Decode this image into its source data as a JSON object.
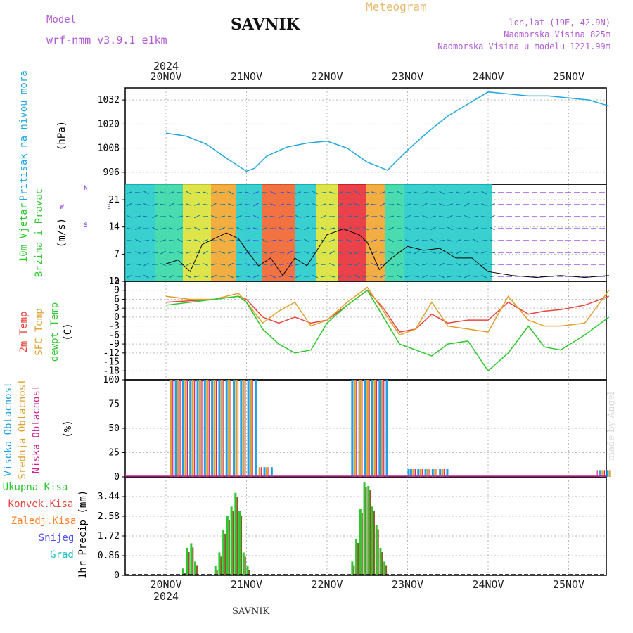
{
  "header": {
    "model_label": "Model",
    "model_name": "wrf-nmm_v3.9.1 e1km",
    "station": "SAVNIK",
    "product": "Meteogram",
    "coords": "lon,lat (19E, 42.9N)",
    "altitude": "Nadmorska Visina 825m",
    "model_altitude": "Nadmorska Visina u modelu 1221.99m",
    "year": "2024"
  },
  "footer": {
    "station": "SAVNIK",
    "year": "2024",
    "credit": "made by Angel"
  },
  "colors": {
    "pressure": "#22a7e0",
    "temp2m": "#e8453c",
    "sfc_temp": "#e0a030",
    "dewpoint": "#2ec82e",
    "cloud_high": "#1ea0e6",
    "cloud_mid": "#e0a030",
    "cloud_low": "#d01f8a",
    "rain_total": "#2ec82e",
    "rain_conv": "#e8453c",
    "snow": "#5050ff",
    "grad": "#22c0c0",
    "zaledj": "#ff7f27",
    "wind_purple": "#8a2be2"
  },
  "chart_data": [
    {
      "type": "line",
      "id": "pressure",
      "ylabel": "Pritisak na nivou mora",
      "unit": "(hPa)",
      "ylim": [
        990,
        1038
      ],
      "yticks": [
        996,
        1008,
        1020,
        1032
      ],
      "x_ticks": [
        "20NOV",
        "21NOV",
        "22NOV",
        "23NOV",
        "24NOV",
        "25NOV"
      ],
      "grid": true,
      "x": [
        0,
        0.25,
        0.5,
        0.75,
        1.0,
        1.1,
        1.25,
        1.5,
        1.75,
        2.0,
        2.25,
        2.5,
        2.75,
        3.0,
        3.25,
        3.5,
        3.75,
        4.0,
        4.25,
        4.5,
        4.75,
        5.0,
        5.25,
        5.5
      ],
      "values": [
        1015.5,
        1014,
        1010,
        1003,
        996.5,
        998,
        1004,
        1008.5,
        1010.5,
        1011.5,
        1008,
        1001,
        997,
        1007,
        1016,
        1024,
        1030,
        1036,
        1035,
        1034,
        1034,
        1033,
        1032,
        1029
      ]
    },
    {
      "type": "line",
      "id": "wind",
      "ylabel": "10m Vjetar Brzina i Pravac",
      "unit": "(m/s)",
      "ylim": [
        0,
        25
      ],
      "yticks": [
        0,
        7,
        14,
        21
      ],
      "compass": {
        "n": "N",
        "e": "E",
        "s": "S",
        "w": "W"
      },
      "grid": true,
      "x": [
        0,
        0.15,
        0.3,
        0.45,
        0.6,
        0.75,
        0.9,
        1.0,
        1.15,
        1.3,
        1.45,
        1.6,
        1.75,
        2.0,
        2.2,
        2.4,
        2.5,
        2.65,
        2.8,
        3.0,
        3.2,
        3.4,
        3.6,
        3.8,
        4.0,
        4.3,
        4.6,
        4.9,
        5.2,
        5.5
      ],
      "values": [
        4.5,
        5.5,
        2.5,
        9.5,
        11,
        12.5,
        11,
        8,
        4,
        6,
        1.5,
        6,
        4,
        12,
        13.5,
        12,
        10,
        3,
        6,
        9,
        8,
        8.5,
        6,
        6,
        2.5,
        1.5,
        1,
        1.5,
        1,
        1.5
      ]
    },
    {
      "type": "line",
      "id": "temperature",
      "ylabels": [
        "2m Temp",
        "SFC Temp",
        "dewpt Temp"
      ],
      "unit": "(C)",
      "ylim": [
        -21,
        12
      ],
      "yticks": [
        -18,
        -15,
        -12,
        -9,
        -6,
        -3,
        0,
        3,
        6,
        9,
        12
      ],
      "grid": true,
      "x": [
        0,
        0.3,
        0.6,
        0.9,
        1.0,
        1.2,
        1.4,
        1.6,
        1.8,
        2.0,
        2.25,
        2.5,
        2.7,
        2.9,
        3.1,
        3.3,
        3.5,
        3.75,
        4.0,
        4.25,
        4.5,
        4.7,
        4.9,
        5.2,
        5.5
      ],
      "series": [
        {
          "name": "2m Temp",
          "values": [
            5,
            5.5,
            6,
            7,
            6,
            0,
            -2,
            0,
            -2,
            -1,
            4,
            9,
            3,
            -5,
            -4,
            1,
            -2,
            -1,
            -1,
            5,
            1,
            2,
            2.5,
            4,
            7
          ]
        },
        {
          "name": "SFC Temp",
          "values": [
            7,
            6,
            6,
            8,
            5,
            -2,
            2,
            5,
            -3,
            -1,
            5,
            10,
            2,
            -6,
            -4,
            5,
            -3,
            -4,
            -5,
            7,
            -1,
            -3,
            -3,
            -2,
            9
          ]
        },
        {
          "name": "dewpt Temp",
          "values": [
            4,
            5,
            6,
            7,
            5,
            -4,
            -9,
            -12,
            -11,
            -2,
            4,
            9,
            0,
            -9,
            -11,
            -13,
            -9,
            -8,
            -18,
            -12,
            -3,
            -10,
            -11,
            -6,
            0
          ]
        }
      ]
    },
    {
      "type": "bar",
      "id": "cloud",
      "ylabels": [
        "Visoka Oblacnost",
        "Srednja Oblacnost",
        "Niska Oblacnost"
      ],
      "unit": "(%)",
      "ylim": [
        0,
        100
      ],
      "yticks": [
        0,
        25,
        50,
        75,
        100
      ],
      "grid": true,
      "bar_groups": [
        {
          "start": 0.05,
          "end": 1.1,
          "value": 100
        },
        {
          "start": 2.3,
          "end": 2.4,
          "value": 100
        },
        {
          "start": 2.4,
          "end": 2.75,
          "value": 100
        },
        {
          "start": 1.15,
          "end": 1.3,
          "value": 10
        },
        {
          "start": 3.0,
          "end": 3.5,
          "value": 8
        },
        {
          "start": 5.35,
          "end": 5.5,
          "value": 7
        }
      ]
    },
    {
      "type": "bar",
      "id": "precip",
      "ylabel": "1hr Precip",
      "unit": "(mm)",
      "ylim": [
        0,
        4.3
      ],
      "yticks": [
        0,
        0.86,
        1.72,
        2.58,
        3.44
      ],
      "series_names": [
        "Ukupna Kisa",
        "Konvek.Kisa",
        "Zaledj.Kisa",
        "Snijeg",
        "Grad"
      ],
      "grid": true,
      "x": [
        0.2,
        0.25,
        0.3,
        0.35,
        0.6,
        0.65,
        0.7,
        0.75,
        0.8,
        0.85,
        0.9,
        0.95,
        1.0,
        2.3,
        2.35,
        2.4,
        2.45,
        2.5,
        2.55,
        2.6,
        2.65,
        2.7
      ],
      "values": [
        0.3,
        1.2,
        1.4,
        0.6,
        0.4,
        1.0,
        2.0,
        2.6,
        3.0,
        3.6,
        2.8,
        1.0,
        0.4,
        0.6,
        1.6,
        2.9,
        4.05,
        3.9,
        3.0,
        2.2,
        1.2,
        0.6
      ]
    }
  ]
}
